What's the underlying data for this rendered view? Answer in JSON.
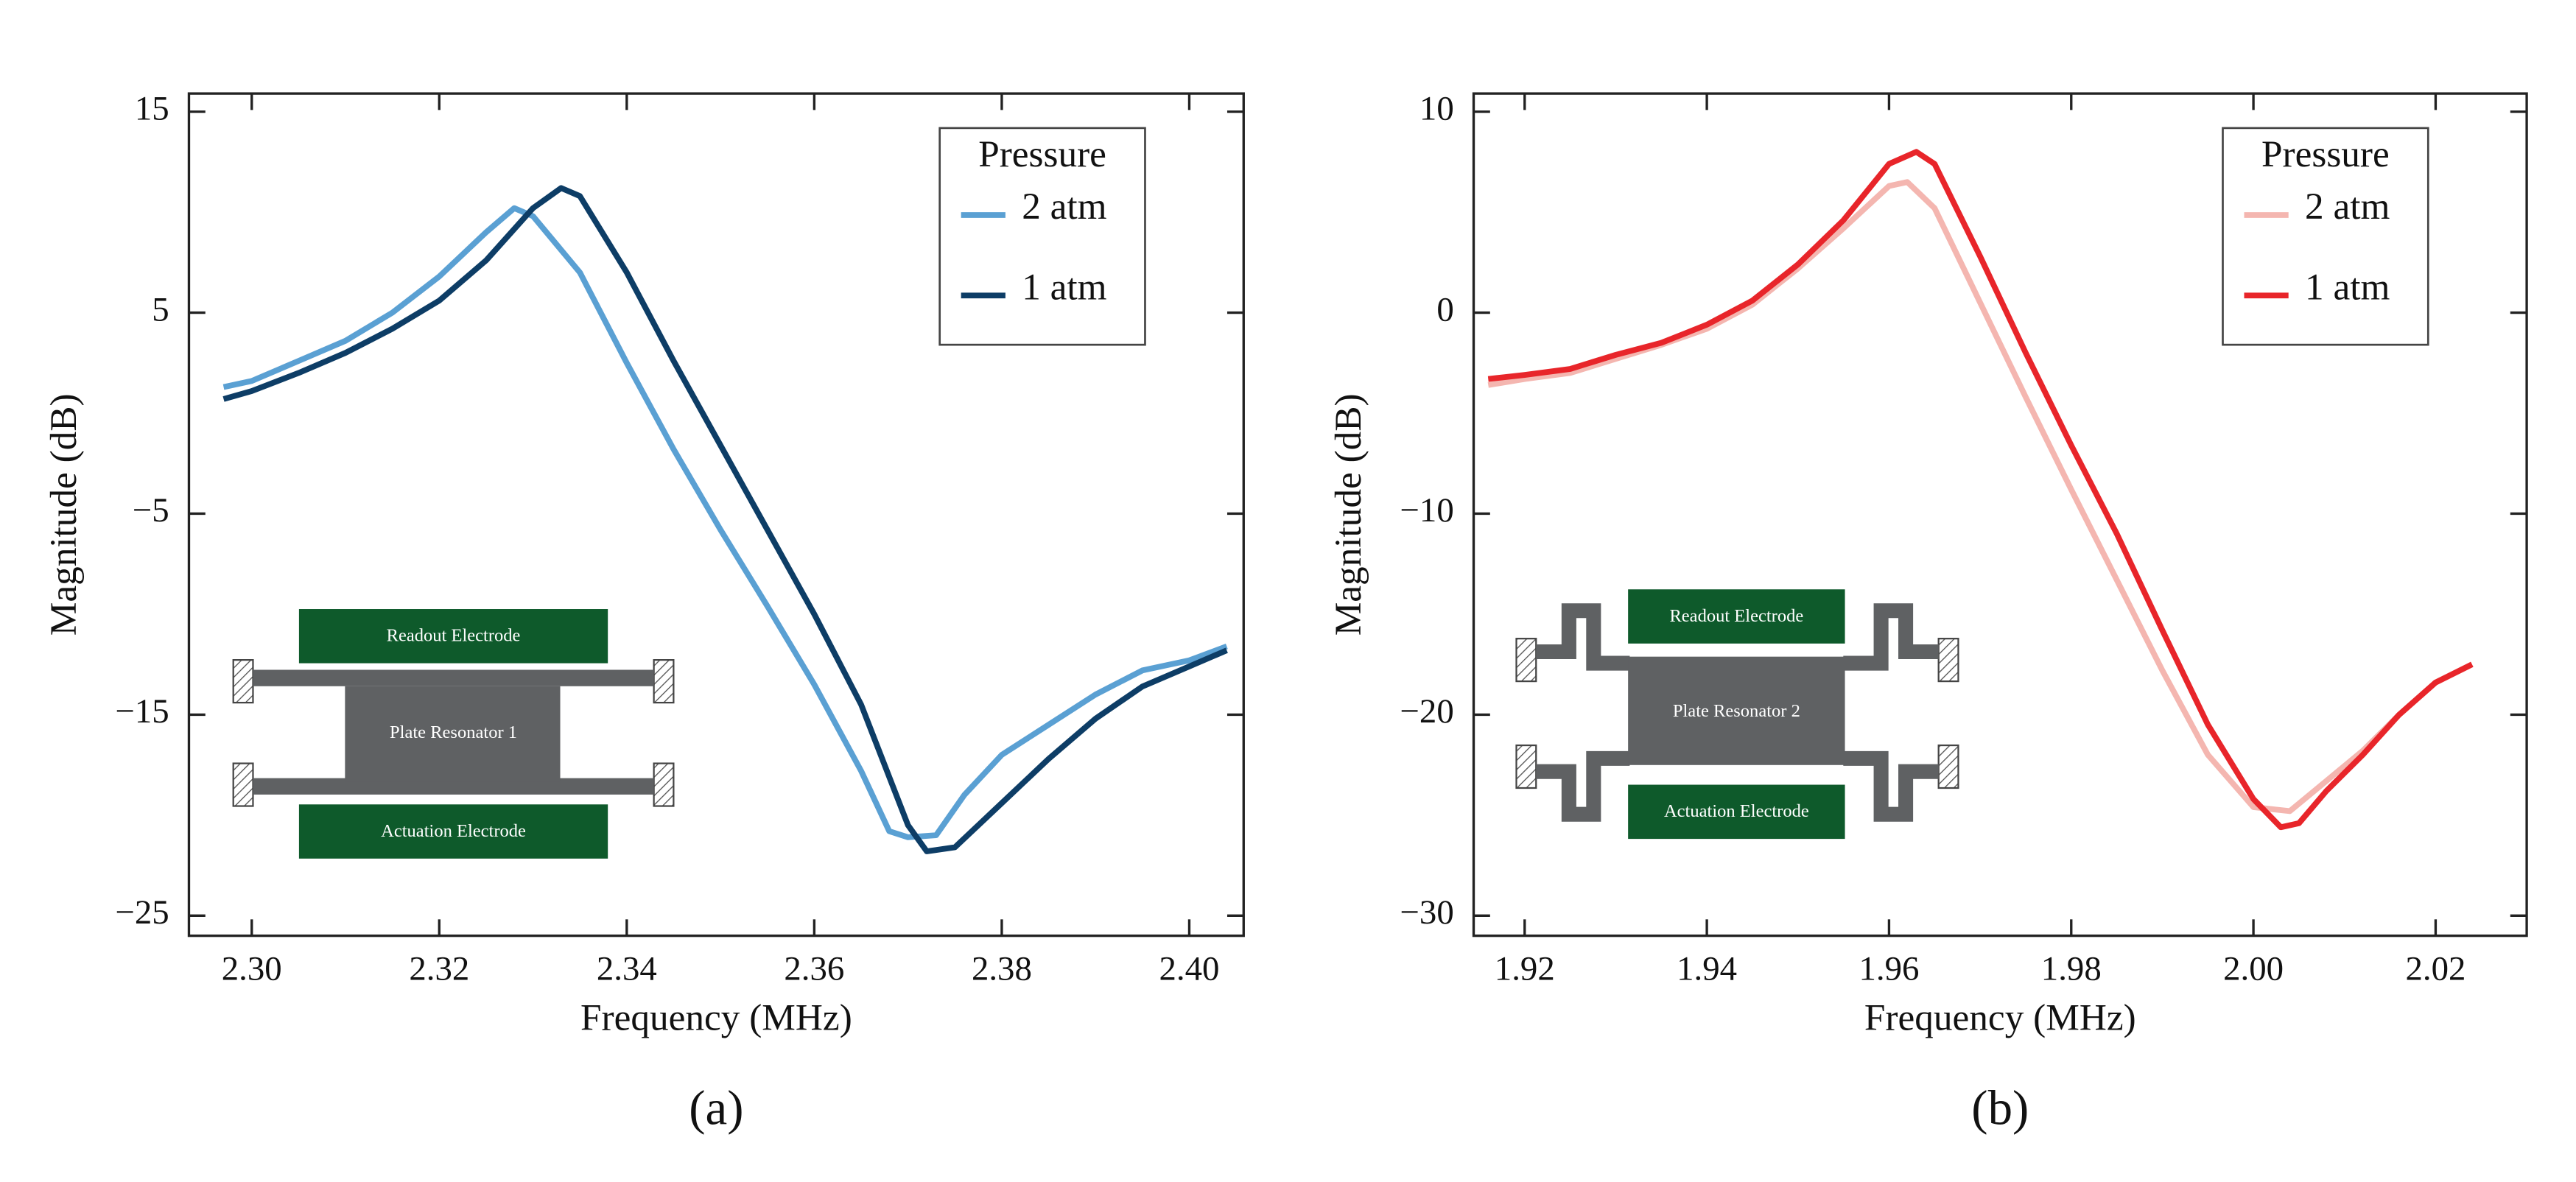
{
  "chart_data": [
    {
      "type": "line",
      "panel_label": "(a)",
      "xlabel": "Frequency (MHz)",
      "ylabel": "Magnitude (dB)",
      "xlim": [
        2.2933,
        2.4058
      ],
      "ylim": [
        -26,
        15.9
      ],
      "xticks": [
        {
          "value": 2.3,
          "label": "2.30"
        },
        2.32,
        2.34,
        2.36,
        2.38,
        {
          "value": 2.4,
          "label": "2.40"
        }
      ],
      "yticks": [
        15,
        5,
        {
          "value": -5,
          "label": "−5"
        },
        {
          "value": -15,
          "label": "−15"
        },
        {
          "value": -25,
          "label": "−25"
        }
      ],
      "legend_title": "Pressure",
      "legend": "upper right",
      "annotations": [
        "Readout Electrode",
        "Plate Resonator 1",
        "Actuation Electrode"
      ],
      "series": [
        {
          "name": "2 atm",
          "color": "#5aa0d3",
          "x": [
            2.297,
            2.3,
            2.305,
            2.31,
            2.315,
            2.32,
            2.325,
            2.328,
            2.33,
            2.335,
            2.34,
            2.345,
            2.35,
            2.355,
            2.36,
            2.365,
            2.368,
            2.37,
            2.373,
            2.376,
            2.38,
            2.385,
            2.39,
            2.395,
            2.4,
            2.404
          ],
          "values": [
            1.3,
            1.6,
            2.6,
            3.6,
            5.0,
            6.8,
            9.0,
            10.2,
            9.8,
            7.0,
            2.5,
            -1.8,
            -5.8,
            -9.6,
            -13.5,
            -17.8,
            -20.8,
            -21.1,
            -21.0,
            -19.0,
            -17.0,
            -15.5,
            -14.0,
            -12.8,
            -12.3,
            -11.6
          ]
        },
        {
          "name": "1 atm",
          "color": "#0d3d66",
          "x": [
            2.297,
            2.3,
            2.305,
            2.31,
            2.315,
            2.32,
            2.325,
            2.33,
            2.333,
            2.335,
            2.34,
            2.345,
            2.35,
            2.355,
            2.36,
            2.365,
            2.37,
            2.372,
            2.375,
            2.38,
            2.385,
            2.39,
            2.395,
            2.4,
            2.404
          ],
          "values": [
            0.7,
            1.1,
            2.0,
            3.0,
            4.2,
            5.6,
            7.6,
            10.2,
            11.2,
            10.8,
            7.0,
            2.6,
            -1.6,
            -5.8,
            -10.0,
            -14.5,
            -20.5,
            -21.8,
            -21.6,
            -19.4,
            -17.2,
            -15.2,
            -13.6,
            -12.6,
            -11.8
          ]
        }
      ]
    },
    {
      "type": "line",
      "panel_label": "(b)",
      "xlabel": "Frequency (MHz)",
      "ylabel": "Magnitude (dB)",
      "xlim": [
        1.9144,
        2.03
      ],
      "ylim": [
        -31,
        10.9
      ],
      "xticks": [
        1.92,
        1.94,
        1.96,
        1.98,
        {
          "value": 2,
          "label": "2.00"
        },
        2.02
      ],
      "yticks": [
        10,
        0,
        {
          "value": -10,
          "label": "−10"
        },
        {
          "value": -20,
          "label": "−20"
        },
        {
          "value": -30,
          "label": "−30"
        }
      ],
      "legend_title": "Pressure",
      "legend": "upper right",
      "annotations": [
        "Readout Electrode",
        "Plate Resonator 2",
        "Actuation Electrode"
      ],
      "series": [
        {
          "name": "2 atm",
          "color": "#f4b6b0",
          "x": [
            1.916,
            1.92,
            1.925,
            1.93,
            1.935,
            1.94,
            1.945,
            1.95,
            1.955,
            1.96,
            1.962,
            1.965,
            1.97,
            1.975,
            1.98,
            1.985,
            1.99,
            1.995,
            2.0,
            2.004,
            2.008,
            2.012,
            2.016,
            2.02,
            2.024
          ],
          "values": [
            -3.6,
            -3.3,
            -3.0,
            -2.3,
            -1.6,
            -0.8,
            0.4,
            2.2,
            4.2,
            6.3,
            6.5,
            5.2,
            0.5,
            -4.2,
            -8.8,
            -13.3,
            -17.8,
            -22.0,
            -24.6,
            -24.8,
            -23.3,
            -21.8,
            -20.0,
            -18.4,
            -17.5
          ]
        },
        {
          "name": "1 atm",
          "color": "#e8252a",
          "x": [
            1.916,
            1.92,
            1.925,
            1.93,
            1.935,
            1.94,
            1.945,
            1.95,
            1.955,
            1.96,
            1.963,
            1.965,
            1.97,
            1.975,
            1.98,
            1.985,
            1.99,
            1.995,
            2.0,
            2.003,
            2.005,
            2.008,
            2.012,
            2.016,
            2.02,
            2.024
          ],
          "values": [
            -3.3,
            -3.1,
            -2.8,
            -2.1,
            -1.5,
            -0.6,
            0.6,
            2.4,
            4.6,
            7.4,
            8.0,
            7.4,
            2.8,
            -2.0,
            -6.6,
            -11.0,
            -15.8,
            -20.5,
            -24.2,
            -25.6,
            -25.4,
            -23.8,
            -22.0,
            -20.0,
            -18.4,
            -17.5
          ]
        }
      ]
    }
  ]
}
